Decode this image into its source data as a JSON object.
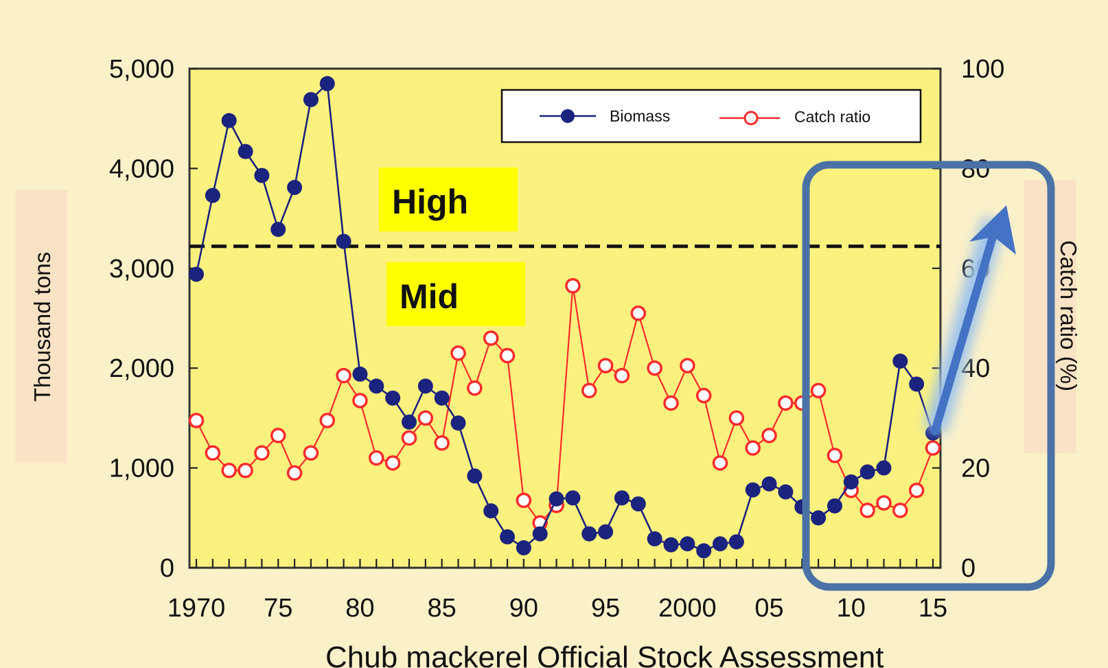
{
  "colors": {
    "background": "#fbf1c9",
    "plot_background": "#fbf17f",
    "biomass": "#1a237e",
    "catch_ratio": "#ff2a2a",
    "label_box": "#ffff00",
    "axis_label_box": "#fae3c4",
    "highlight_box": "#4a72a6",
    "arrow": "#4472c4"
  },
  "annotations": {
    "high_label": "High",
    "mid_label": "Mid",
    "caption_partial": "Chub mackerel Official Stock Assessment",
    "y2_label_partial": "Catch ratio (%)"
  },
  "chart_data": {
    "type": "line",
    "ylabel": "Thousand tons",
    "ylabel_right": "Catch ratio (%)",
    "ylim": [
      0,
      5000
    ],
    "ylim_right": [
      0,
      100
    ],
    "xlim": [
      1970,
      2015
    ],
    "x_ticks": [
      {
        "value": 1970,
        "label": "1970"
      },
      {
        "value": 1975,
        "label": "75"
      },
      {
        "value": 1980,
        "label": "80"
      },
      {
        "value": 1985,
        "label": "85"
      },
      {
        "value": 1990,
        "label": "90"
      },
      {
        "value": 1995,
        "label": "95"
      },
      {
        "value": 2000,
        "label": "2000"
      },
      {
        "value": 2005,
        "label": "05"
      },
      {
        "value": 2010,
        "label": "10"
      },
      {
        "value": 2015,
        "label": "15"
      }
    ],
    "y_ticks": [
      {
        "value": 0,
        "label": "0"
      },
      {
        "value": 1000,
        "label": "1,000"
      },
      {
        "value": 2000,
        "label": "2,000"
      },
      {
        "value": 3000,
        "label": "3,000"
      },
      {
        "value": 4000,
        "label": "4,000"
      },
      {
        "value": 5000,
        "label": "5,000"
      }
    ],
    "y2_ticks": [
      {
        "value": 0,
        "label": "0"
      },
      {
        "value": 20,
        "label": "20"
      },
      {
        "value": 40,
        "label": "40"
      },
      {
        "value": 60,
        "label": "60"
      },
      {
        "value": 80,
        "label": "80"
      },
      {
        "value": 100,
        "label": "100"
      }
    ],
    "threshold": 3220,
    "legend_position": "top-right",
    "x": [
      1970,
      1971,
      1972,
      1973,
      1974,
      1975,
      1976,
      1977,
      1978,
      1979,
      1980,
      1981,
      1982,
      1983,
      1984,
      1985,
      1986,
      1987,
      1988,
      1989,
      1990,
      1991,
      1992,
      1993,
      1994,
      1995,
      1996,
      1997,
      1998,
      1999,
      2000,
      2001,
      2002,
      2003,
      2004,
      2005,
      2006,
      2007,
      2008,
      2009,
      2010,
      2011,
      2012,
      2013,
      2014,
      2015
    ],
    "series": [
      {
        "name": "Biomass",
        "axis": "left",
        "marker": "filled",
        "values": [
          2940,
          3730,
          4480,
          4170,
          3930,
          3390,
          3810,
          4690,
          4850,
          3270,
          1940,
          1820,
          1700,
          1460,
          1820,
          1700,
          1450,
          920,
          570,
          310,
          200,
          340,
          690,
          700,
          340,
          360,
          700,
          640,
          290,
          230,
          240,
          170,
          240,
          260,
          780,
          840,
          760,
          610,
          500,
          620,
          860,
          960,
          1000,
          2070,
          1840,
          1350
        ]
      },
      {
        "name": "Catch ratio",
        "axis": "right",
        "marker": "open",
        "values": [
          29.5,
          23,
          19.5,
          19.5,
          23,
          26.5,
          19,
          23,
          29.5,
          38.5,
          33.5,
          22,
          21,
          26,
          30,
          25,
          43,
          36,
          46,
          42.5,
          13.5,
          9,
          12.5,
          56.5,
          35.5,
          40.5,
          38.5,
          51,
          40,
          33,
          40.5,
          34.5,
          21,
          30,
          24,
          26.5,
          33,
          33,
          35.5,
          22.5,
          15.5,
          11.5,
          13,
          11.5,
          15.5,
          24
        ]
      }
    ]
  }
}
